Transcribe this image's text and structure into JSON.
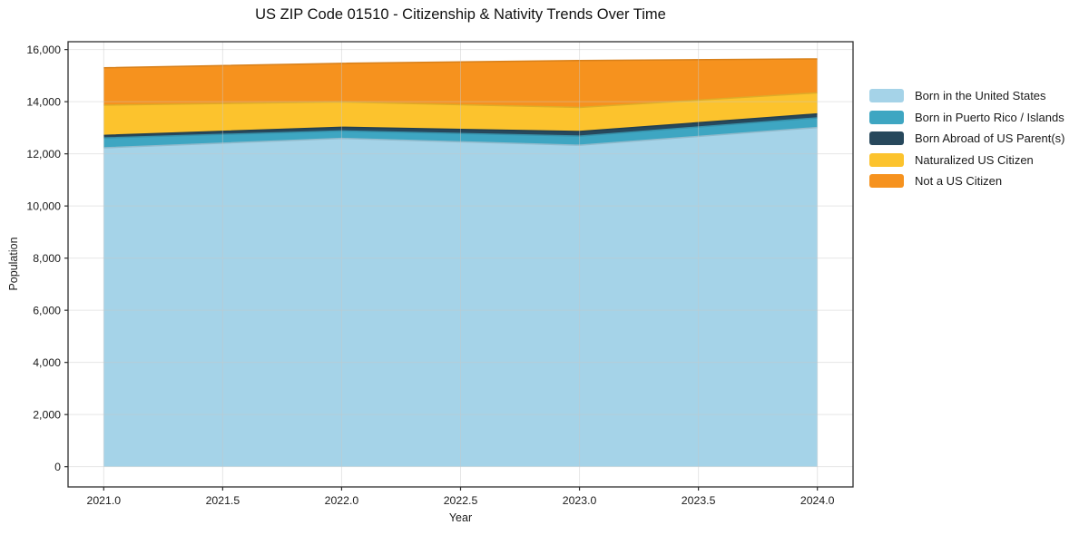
{
  "title": "US ZIP Code 01510 - Citizenship & Nativity Trends Over Time",
  "colors": {
    "background": "#ffffff",
    "text": "#1a1a1a",
    "spine": "#2e2e2e",
    "grid": "#c8c8c8"
  },
  "chart_data": {
    "type": "area",
    "stacked": true,
    "title": "US ZIP Code 01510 - Citizenship & Nativity Trends Over Time",
    "xlabel": "Year",
    "ylabel": "Population",
    "x": [
      2021.0,
      2022.0,
      2023.0,
      2024.0
    ],
    "series": [
      {
        "name": "Born in the United States",
        "color": "#a5d3e8",
        "values": [
          12230,
          12590,
          12330,
          13010
        ]
      },
      {
        "name": "Born in Puerto Rico / Islands",
        "color": "#3ea6c2",
        "values": [
          380,
          290,
          350,
          370
        ]
      },
      {
        "name": "Born Abroad of US Parent(s)",
        "color": "#27485c",
        "values": [
          95,
          140,
          175,
          150
        ]
      },
      {
        "name": "Naturalized US Citizen",
        "color": "#fcc32d",
        "values": [
          1165,
          970,
          925,
          810
        ]
      },
      {
        "name": "Not a US Citizen",
        "color": "#f6921e",
        "values": [
          1430,
          1480,
          1800,
          1300
        ]
      }
    ],
    "totals": [
      15300,
      15470,
      15580,
      15640
    ],
    "xlim": [
      2020.85,
      2024.15
    ],
    "ylim": [
      -776,
      16300
    ],
    "xticks": [
      2021.0,
      2021.5,
      2022.0,
      2022.5,
      2023.0,
      2023.5,
      2024.0
    ],
    "xtick_labels": [
      "2021.0",
      "2021.5",
      "2022.0",
      "2022.5",
      "2023.0",
      "2023.5",
      "2024.0"
    ],
    "yticks": [
      0,
      2000,
      4000,
      6000,
      8000,
      10000,
      12000,
      14000,
      16000
    ],
    "ytick_labels": [
      "0",
      "2,000",
      "4,000",
      "6,000",
      "8,000",
      "10,000",
      "12,000",
      "14,000",
      "16,000"
    ],
    "grid": true,
    "legend_position": "outside-right-top"
  }
}
